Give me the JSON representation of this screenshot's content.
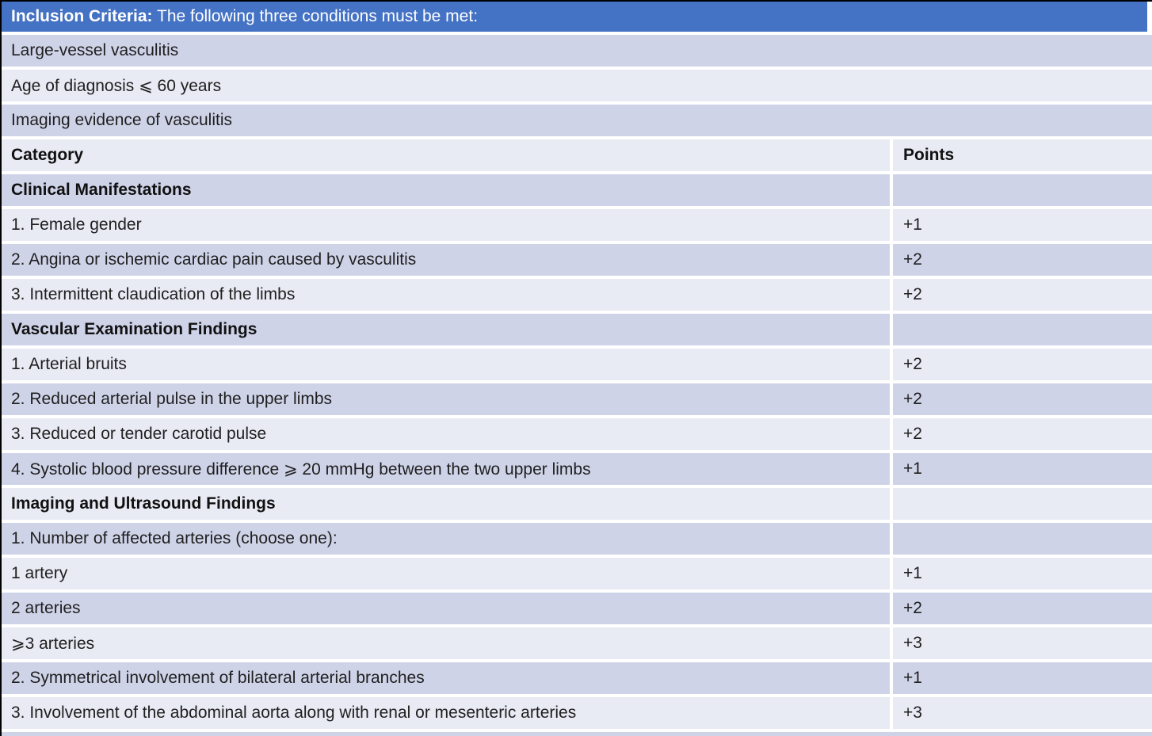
{
  "colors": {
    "banner_blue": "#4472c4",
    "band_dark": "#cfd3e8",
    "band_light": "#e8eaf4",
    "border_black": "#000000",
    "banner_text": "#ffffff",
    "body_text": "#1f1f1f"
  },
  "inclusion": {
    "title_bold": "Inclusion Criteria:",
    "title_rest": " The following three conditions must be met:",
    "conditions": [
      "Large-vessel vasculitis",
      "Age of diagnosis ⩽ 60 years",
      "Imaging evidence of vasculitis"
    ]
  },
  "table": {
    "headers": {
      "category": "Category",
      "points": "Points"
    },
    "rows": [
      {
        "label": "Clinical Manifestations",
        "points": ""
      },
      {
        "label": "1. Female gender",
        "points": "+1"
      },
      {
        "label": "2. Angina or ischemic cardiac pain caused by vasculitis",
        "points": "+2"
      },
      {
        "label": "3. Intermittent claudication of the limbs",
        "points": "+2"
      },
      {
        "label": "Vascular Examination Findings",
        "points": ""
      },
      {
        "label": "1. Arterial bruits",
        "points": "+2"
      },
      {
        "label": "2. Reduced arterial pulse in the upper limbs",
        "points": "+2"
      },
      {
        "label": "3. Reduced or tender carotid pulse",
        "points": "+2"
      },
      {
        "label": "4. Systolic blood pressure difference ⩾ 20 mmHg between the two upper limbs",
        "points": "+1"
      },
      {
        "label": "Imaging and Ultrasound Findings",
        "points": ""
      },
      {
        "label": "1. Number of affected arteries (choose one):",
        "points": ""
      },
      {
        "label": "1 artery",
        "points": "+1"
      },
      {
        "label": "2 arteries",
        "points": "+2"
      },
      {
        "label": "⩾3 arteries",
        "points": "+3"
      },
      {
        "label": "2. Symmetrical involvement of bilateral arterial branches",
        "points": "+1"
      },
      {
        "label": "3. Involvement of the abdominal aorta along with renal or mesenteric arteries",
        "points": "+3"
      }
    ]
  }
}
